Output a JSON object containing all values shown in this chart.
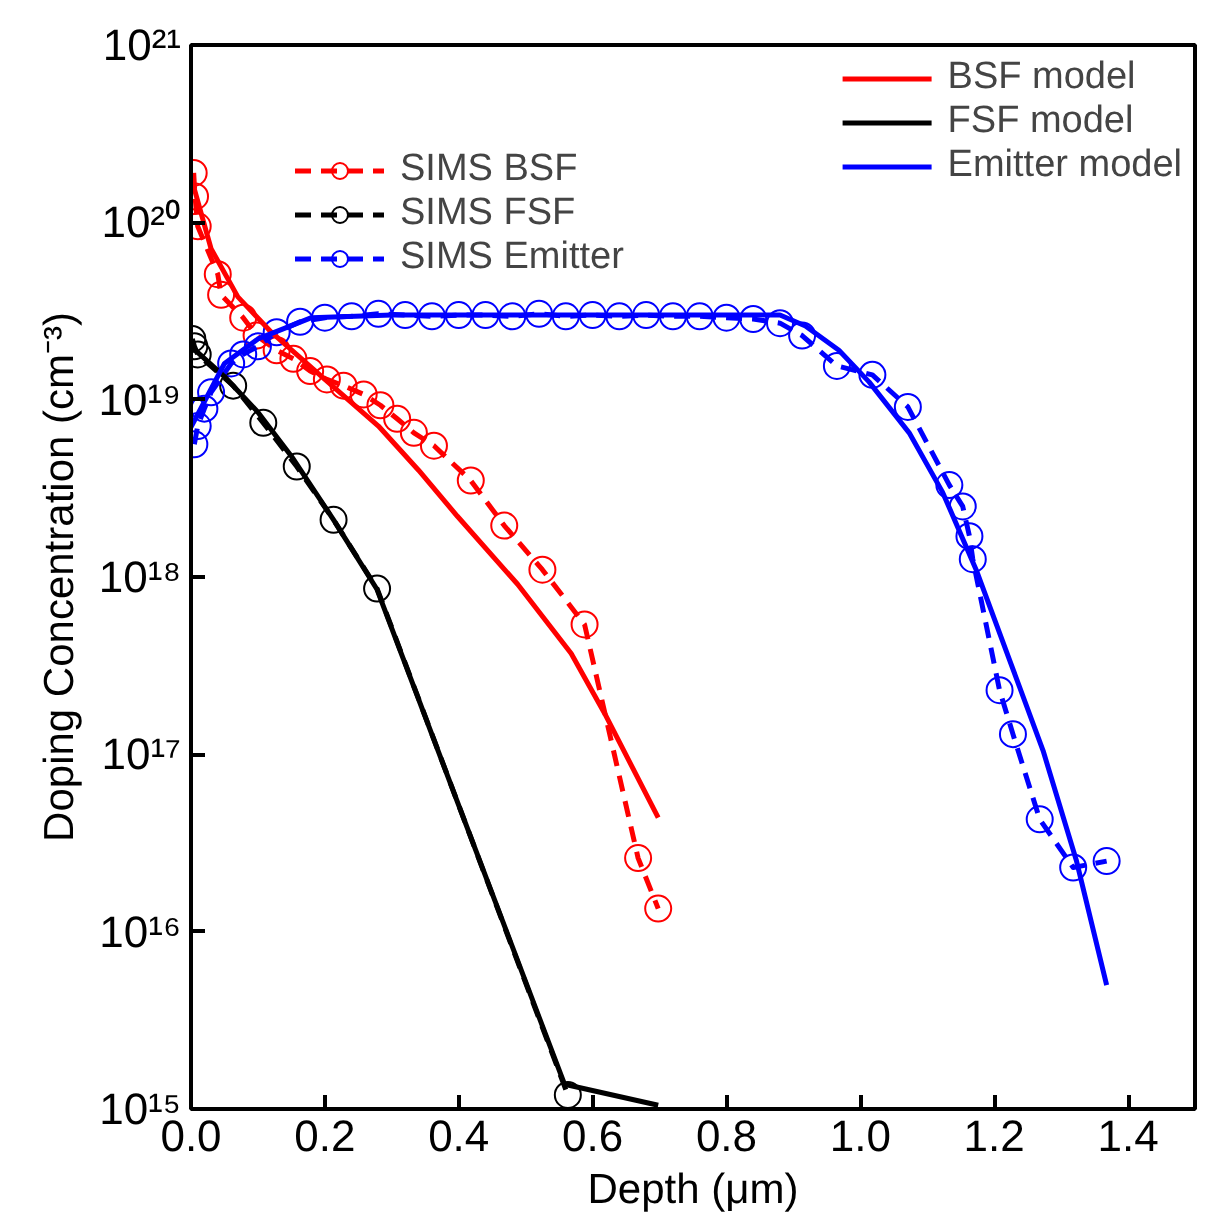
{
  "chart_data": {
    "type": "line",
    "xlabel": "Depth (μm)",
    "ylabel": "Doping Concentration (cm⁻³)",
    "log": "y",
    "grid": false,
    "legend": "top right",
    "xlim": [
      0,
      1.5
    ],
    "ylim": [
      1000000000000000.0,
      1e+21
    ],
    "xticks": [
      {
        "value": 0,
        "label": "0.0"
      },
      0.2,
      0.4,
      0.6,
      0.8,
      {
        "value": 1,
        "label": "1.0"
      },
      1.2,
      1.4
    ],
    "yticks": [
      {
        "value": 1000000000000000.0,
        "label": "10¹⁵"
      },
      {
        "value": 1e+16,
        "label": "10¹⁶"
      },
      {
        "value": 1e+17,
        "label": "10¹⁷"
      },
      {
        "value": 1e+18,
        "label": "10¹⁸"
      },
      {
        "value": 1e+19,
        "label": "10¹⁹"
      },
      {
        "value": 1e+20,
        "label": "10²⁰"
      },
      {
        "value": 1e+21,
        "label": "10²¹"
      }
    ],
    "series": [
      {
        "name": "SIMS BSF",
        "color": "#ff0000",
        "line_style": "dashed",
        "marker": "circle",
        "x": [
          0.004,
          0.006,
          0.01,
          0.04,
          0.045,
          0.078,
          0.098,
          0.128,
          0.153,
          0.178,
          0.203,
          0.228,
          0.258,
          0.283,
          0.308,
          0.333,
          0.363,
          0.418,
          0.468,
          0.525,
          0.588,
          0.668,
          0.698
        ],
        "values": [
          1.9e+20,
          1.4e+20,
          9.5e+19,
          5.1e+19,
          3.9e+19,
          2.9e+19,
          2.3e+19,
          1.9e+19,
          1.7e+19,
          1.45e+19,
          1.3e+19,
          1.2e+19,
          1.07e+19,
          9.3e+18,
          7.8e+18,
          6.5e+18,
          5.5e+18,
          3.5e+18,
          1.95e+18,
          1.1e+18,
          5.4e+17,
          2.6e+16,
          1.35e+16
        ]
      },
      {
        "name": "SIMS FSF",
        "color": "#000000",
        "line_style": "dashed",
        "marker": "circle",
        "x": [
          0.002,
          0.005,
          0.01,
          0.063,
          0.108,
          0.158,
          0.213,
          0.278,
          0.563
        ],
        "values": [
          2.2e+19,
          2e+19,
          1.8e+19,
          1.2e+19,
          7.4e+18,
          4.2e+18,
          2.1e+18,
          8.6e+17,
          1200000000000000.0
        ]
      },
      {
        "name": "SIMS Emitter",
        "color": "#0000ff",
        "line_style": "dashed",
        "marker": "circle",
        "x": [
          0.005,
          0.01,
          0.02,
          0.03,
          0.06,
          0.078,
          0.1,
          0.128,
          0.163,
          0.2,
          0.24,
          0.28,
          0.32,
          0.36,
          0.4,
          0.44,
          0.48,
          0.52,
          0.56,
          0.6,
          0.64,
          0.68,
          0.72,
          0.76,
          0.8,
          0.84,
          0.88,
          0.913,
          0.965,
          1.018,
          1.071,
          1.133,
          1.153,
          1.163,
          1.168,
          1.208,
          1.228,
          1.268,
          1.318,
          1.368
        ],
        "values": [
          5.6e+18,
          7.1e+18,
          8.9e+18,
          1.1e+19,
          1.6e+19,
          1.8e+19,
          2e+19,
          2.4e+19,
          2.75e+19,
          2.9e+19,
          2.95e+19,
          3.05e+19,
          3e+19,
          2.95e+19,
          3e+19,
          3e+19,
          2.95e+19,
          3.05e+19,
          2.95e+19,
          3e+19,
          2.95e+19,
          3e+19,
          2.95e+19,
          2.95e+19,
          2.9e+19,
          2.85e+19,
          2.7e+19,
          2.3e+19,
          1.55e+19,
          1.38e+19,
          9.1e+18,
          3.3e+18,
          2.5e+18,
          1.7e+18,
          1.26e+18,
          2.3e+17,
          1.3e+17,
          4.3e+16,
          2.3e+16,
          2.5e+16
        ]
      },
      {
        "name": "BSF model",
        "color": "#ff0000",
        "line_style": "solid",
        "marker": "none",
        "x": [
          0,
          0.03,
          0.07,
          0.12,
          0.2,
          0.28,
          0.34,
          0.398,
          0.488,
          0.568,
          0.618,
          0.698
        ],
        "values": [
          1.8e+20,
          7.1e+19,
          3.8e+19,
          2.4e+19,
          1.3e+19,
          7.1e+18,
          4e+18,
          2.2e+18,
          9.1e+17,
          3.7e+17,
          1.7e+17,
          4.4e+16
        ]
      },
      {
        "name": "FSF model",
        "color": "#000000",
        "line_style": "solid",
        "marker": "none",
        "x": [
          0,
          0.05,
          0.1,
          0.15,
          0.213,
          0.278,
          0.398,
          0.558,
          0.698
        ],
        "values": [
          2e+19,
          1.35e+19,
          8.5e+18,
          4.8e+18,
          2.1e+18,
          8.5e+17,
          5.4e+16,
          1380000000000000.0,
          1050000000000000.0
        ]
      },
      {
        "name": "Emitter model",
        "color": "#0000ff",
        "line_style": "solid",
        "marker": "none",
        "x": [
          0,
          0.05,
          0.1,
          0.18,
          0.3,
          0.6,
          0.88,
          0.918,
          0.968,
          1.013,
          1.073,
          1.123,
          1.173,
          1.223,
          1.273,
          1.323,
          1.368
        ],
        "values": [
          7e+18,
          1.6e+19,
          2.2e+19,
          2.9e+19,
          3e+19,
          3e+19,
          3e+19,
          2.6e+19,
          1.9e+19,
          1.26e+19,
          6.5e+18,
          3e+18,
          1.1e+18,
          3.4e+17,
          1.05e+17,
          2.5e+16,
          5000000000000000.0
        ]
      }
    ]
  }
}
